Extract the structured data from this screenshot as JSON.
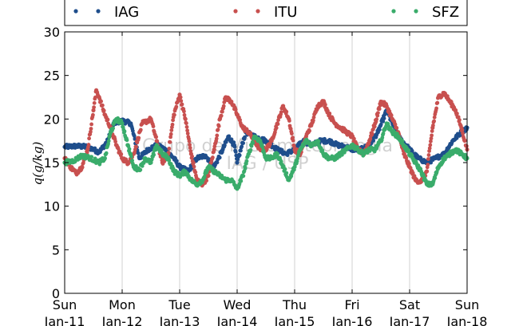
{
  "chart_data": {
    "type": "scatter",
    "ylabel": "q(g/kg)",
    "ylim": [
      0,
      30
    ],
    "yticks": [
      0,
      5,
      10,
      15,
      20,
      25,
      30
    ],
    "xlim": [
      "2018-01-11",
      "2018-01-18"
    ],
    "xticks": [
      {
        "day": "Sun",
        "date": "Jan-11"
      },
      {
        "day": "Mon",
        "date": "Jan-12"
      },
      {
        "day": "Tue",
        "date": "Jan-13"
      },
      {
        "day": "Wed",
        "date": "Jan-14"
      },
      {
        "day": "Thu",
        "date": "Jan-15"
      },
      {
        "day": "Fri",
        "date": "Jan-16"
      },
      {
        "day": "Sat",
        "date": "Jan-17"
      },
      {
        "day": "Sun",
        "date": "Jan-18"
      }
    ],
    "grid": "vertical",
    "legend_position": "top",
    "watermark": [
      "Grupo de Micrometeorologia",
      "IAG / USP"
    ],
    "series": [
      {
        "name": "IAG",
        "color": "#1f4e8c",
        "x": [
          0.0,
          0.2,
          0.4,
          0.5,
          0.6,
          0.75,
          0.85,
          1.0,
          1.15,
          1.3,
          1.45,
          1.6,
          1.75,
          1.9,
          2.0,
          2.15,
          2.3,
          2.45,
          2.6,
          2.75,
          2.85,
          2.95,
          3.0,
          3.15,
          3.3,
          3.5,
          3.7,
          3.85,
          4.0,
          4.15,
          4.3,
          4.45,
          4.6,
          4.75,
          4.9,
          5.0,
          5.15,
          5.3,
          5.45,
          5.6,
          5.8,
          6.0,
          6.15,
          6.3,
          6.45,
          6.6,
          6.75,
          6.9,
          7.0
        ],
        "y": [
          16.8,
          16.9,
          16.8,
          16.5,
          16.2,
          17.5,
          19.5,
          19.8,
          19.5,
          15.5,
          16.5,
          17.0,
          16.5,
          15.5,
          14.5,
          14.0,
          15.5,
          15.8,
          14.5,
          16.5,
          18.0,
          17.0,
          15.0,
          18.5,
          18.0,
          17.5,
          16.5,
          16.0,
          16.5,
          17.5,
          17.0,
          17.5,
          17.5,
          17.0,
          16.8,
          16.5,
          16.5,
          17.0,
          18.5,
          21.0,
          18.0,
          16.5,
          15.5,
          15.0,
          15.5,
          16.0,
          17.5,
          18.5,
          19.0
        ]
      },
      {
        "name": "ITU",
        "color": "#c8504f",
        "x": [
          0.0,
          0.1,
          0.2,
          0.3,
          0.4,
          0.5,
          0.55,
          0.6,
          0.7,
          0.8,
          0.9,
          1.0,
          1.1,
          1.2,
          1.35,
          1.5,
          1.6,
          1.7,
          1.8,
          1.9,
          2.0,
          2.1,
          2.2,
          2.3,
          2.4,
          2.5,
          2.6,
          2.7,
          2.8,
          2.9,
          3.0,
          3.1,
          3.2,
          3.3,
          3.4,
          3.5,
          3.6,
          3.7,
          3.8,
          3.9,
          4.0,
          4.1,
          4.2,
          4.3,
          4.4,
          4.5,
          4.6,
          4.7,
          4.8,
          4.9,
          5.0,
          5.1,
          5.2,
          5.3,
          5.4,
          5.5,
          5.6,
          5.7,
          5.8,
          5.9,
          6.0,
          6.1,
          6.2,
          6.3,
          6.4,
          6.5,
          6.6,
          6.7,
          6.8,
          6.9,
          7.0
        ],
        "y": [
          15.5,
          14.5,
          13.8,
          14.5,
          16.5,
          21.0,
          23.3,
          22.5,
          20.5,
          19.0,
          17.0,
          15.5,
          15.0,
          16.0,
          19.5,
          20.0,
          17.5,
          15.0,
          16.0,
          20.5,
          22.8,
          20.0,
          16.0,
          13.0,
          12.5,
          13.5,
          16.5,
          20.0,
          22.5,
          22.0,
          20.5,
          19.0,
          18.5,
          17.5,
          16.5,
          16.5,
          17.5,
          19.5,
          21.5,
          20.0,
          16.5,
          16.0,
          18.0,
          19.5,
          21.5,
          22.0,
          20.5,
          19.5,
          19.0,
          18.5,
          18.0,
          16.5,
          16.0,
          17.5,
          19.5,
          22.0,
          21.5,
          20.0,
          18.5,
          16.0,
          14.5,
          13.0,
          12.8,
          14.0,
          19.0,
          22.5,
          23.0,
          22.0,
          21.0,
          19.0,
          16.5
        ]
      },
      {
        "name": "SFZ",
        "color": "#3aac6b",
        "x": [
          0.0,
          0.15,
          0.3,
          0.45,
          0.6,
          0.7,
          0.8,
          0.9,
          1.0,
          1.1,
          1.2,
          1.3,
          1.4,
          1.5,
          1.6,
          1.7,
          1.8,
          1.9,
          2.0,
          2.1,
          2.2,
          2.3,
          2.4,
          2.5,
          2.6,
          2.7,
          2.8,
          2.9,
          3.0,
          3.1,
          3.2,
          3.3,
          3.4,
          3.5,
          3.6,
          3.7,
          3.8,
          3.9,
          4.0,
          4.1,
          4.2,
          4.3,
          4.4,
          4.5,
          4.6,
          4.7,
          4.8,
          4.9,
          5.0,
          5.1,
          5.2,
          5.3,
          5.4,
          5.5,
          5.6,
          5.7,
          5.8,
          5.9,
          6.0,
          6.1,
          6.2,
          6.3,
          6.4,
          6.5,
          6.6,
          6.7,
          6.8,
          6.9,
          7.0
        ],
        "y": [
          15.0,
          15.2,
          15.8,
          15.5,
          15.0,
          15.5,
          18.5,
          20.0,
          19.5,
          17.0,
          14.5,
          14.2,
          15.5,
          15.0,
          17.0,
          16.0,
          15.5,
          14.0,
          13.5,
          14.0,
          13.0,
          12.5,
          13.0,
          14.5,
          14.0,
          13.5,
          13.0,
          13.0,
          12.0,
          13.5,
          16.0,
          18.0,
          17.5,
          15.5,
          15.5,
          16.0,
          14.5,
          13.0,
          14.5,
          16.5,
          17.5,
          17.0,
          17.5,
          16.0,
          15.5,
          15.5,
          16.0,
          16.5,
          17.0,
          16.5,
          16.0,
          16.5,
          16.5,
          17.5,
          19.5,
          18.5,
          18.0,
          17.0,
          16.0,
          15.0,
          14.0,
          12.5,
          12.5,
          14.5,
          15.5,
          16.0,
          16.5,
          16.0,
          15.5
        ]
      }
    ]
  }
}
